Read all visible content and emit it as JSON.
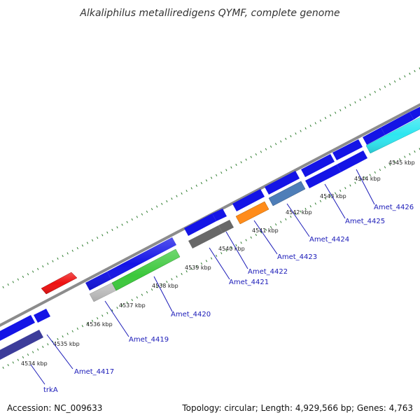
{
  "title": "Alkaliphilus metalliredigens QYMF, complete genome",
  "accession": "Accession: NC_009633",
  "topology": "Topology: circular; Length: 4,929,566 bp; Genes: 4,763",
  "colors": {
    "backbone": "#8c8c8c",
    "ticks": "#2a7a2a",
    "gene_default": "#1414e6",
    "label": "#1a1ab8"
  },
  "scale_labels": [
    "4534 kbp",
    "4535 kbp",
    "4536 kbp",
    "4537 kbp",
    "4538 kbp",
    "4539 kbp",
    "4540 kbp",
    "4541 kbp",
    "4542 kbp",
    "4543 kbp",
    "4544 kbp",
    "4545 kbp"
  ],
  "gene_labels": [
    "trkA",
    "Amet_4417",
    "Amet_4419",
    "Amet_4420",
    "Amet_4421",
    "Amet_4422",
    "Amet_4423",
    "Amet_4424",
    "Amet_4425",
    "Amet_4426"
  ]
}
